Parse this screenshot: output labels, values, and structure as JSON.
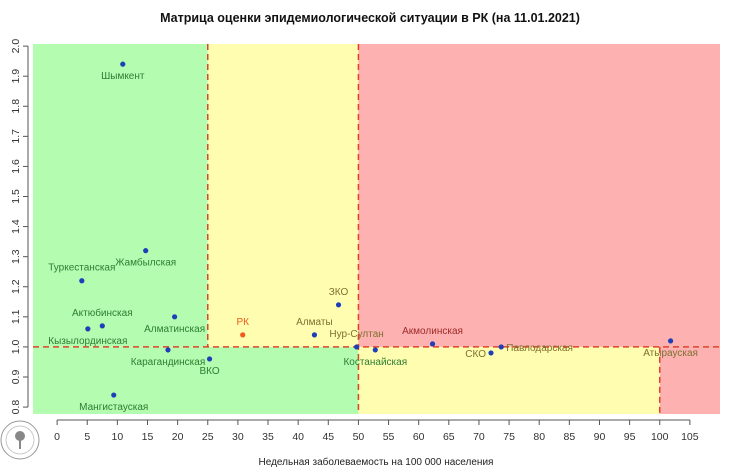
{
  "chart_data": {
    "type": "scatter",
    "title": "Матрица оценки эпидемиологической ситуации в РК (на 11.01.2021)",
    "xlabel": "Недельная заболеваемость на 100 000 населения",
    "ylabel": "",
    "xlim": [
      -4,
      110
    ],
    "ylim": [
      0.777,
      2.007
    ],
    "x_ticks": [
      0,
      5,
      10,
      15,
      20,
      25,
      30,
      35,
      40,
      45,
      50,
      55,
      60,
      65,
      70,
      75,
      80,
      85,
      90,
      95,
      100,
      105
    ],
    "y_ticks": [
      0.8,
      0.9,
      1.0,
      1.1,
      1.2,
      1.3,
      1.4,
      1.5,
      1.6,
      1.7,
      1.8,
      1.9,
      2.0
    ],
    "grid": false,
    "thresholds": {
      "x": [
        25,
        50,
        100
      ],
      "y": 1.0
    },
    "zone_colors": {
      "green": "#b3fcb0",
      "yellow": "#fefdb0",
      "red": "#feb1b1",
      "threshold_line": "#e0432a"
    },
    "point_colors": {
      "region": "#1f3fb8",
      "country": "#f05a1e"
    },
    "label_colors": {
      "green": "#2e7d32",
      "yellow": "#7d7030",
      "red": "#9e2a2a",
      "country": "#f05a1e"
    },
    "points": [
      {
        "name": "Шымкент",
        "x": 10.9,
        "y": 1.94,
        "label_pos": "below",
        "zone": "green"
      },
      {
        "name": "Жамбылская",
        "x": 14.7,
        "y": 1.32,
        "label_pos": "below",
        "zone": "green"
      },
      {
        "name": "Туркестанская",
        "x": 4.1,
        "y": 1.22,
        "label_pos": "above",
        "zone": "green"
      },
      {
        "name": "Актюбинская",
        "x": 7.5,
        "y": 1.07,
        "label_pos": "above",
        "zone": "green"
      },
      {
        "name": "Кызылординская",
        "x": 5.1,
        "y": 1.06,
        "label_pos": "below",
        "zone": "green"
      },
      {
        "name": "Алматинская",
        "x": 19.5,
        "y": 1.1,
        "label_pos": "below",
        "zone": "green"
      },
      {
        "name": "Карагандинская",
        "x": 18.4,
        "y": 0.99,
        "label_pos": "below",
        "zone": "green"
      },
      {
        "name": "ВКО",
        "x": 25.3,
        "y": 0.96,
        "label_pos": "below",
        "zone": "green"
      },
      {
        "name": "Мангистауская",
        "x": 9.4,
        "y": 0.84,
        "label_pos": "below",
        "zone": "green"
      },
      {
        "name": "РК",
        "x": 30.8,
        "y": 1.04,
        "label_pos": "above",
        "zone": "country"
      },
      {
        "name": "Алматы",
        "x": 42.7,
        "y": 1.04,
        "label_pos": "above",
        "zone": "yellow"
      },
      {
        "name": "ЗКО",
        "x": 46.7,
        "y": 1.14,
        "label_pos": "above",
        "zone": "yellow"
      },
      {
        "name": "Нур-Султан",
        "x": 49.7,
        "y": 1.0,
        "label_pos": "above",
        "zone": "yellow"
      },
      {
        "name": "Костанайская",
        "x": 52.8,
        "y": 0.99,
        "label_pos": "below",
        "zone": "green"
      },
      {
        "name": "Акмолинская",
        "x": 62.3,
        "y": 1.01,
        "label_pos": "above",
        "zone": "red"
      },
      {
        "name": "СКО",
        "x": 72.0,
        "y": 0.98,
        "label_pos": "left",
        "zone": "yellow"
      },
      {
        "name": "Павлодарская",
        "x": 73.7,
        "y": 1.0,
        "label_pos": "right",
        "zone": "yellow"
      },
      {
        "name": "Атырауская",
        "x": 101.8,
        "y": 1.02,
        "label_pos": "below",
        "zone": "yellow"
      }
    ]
  }
}
